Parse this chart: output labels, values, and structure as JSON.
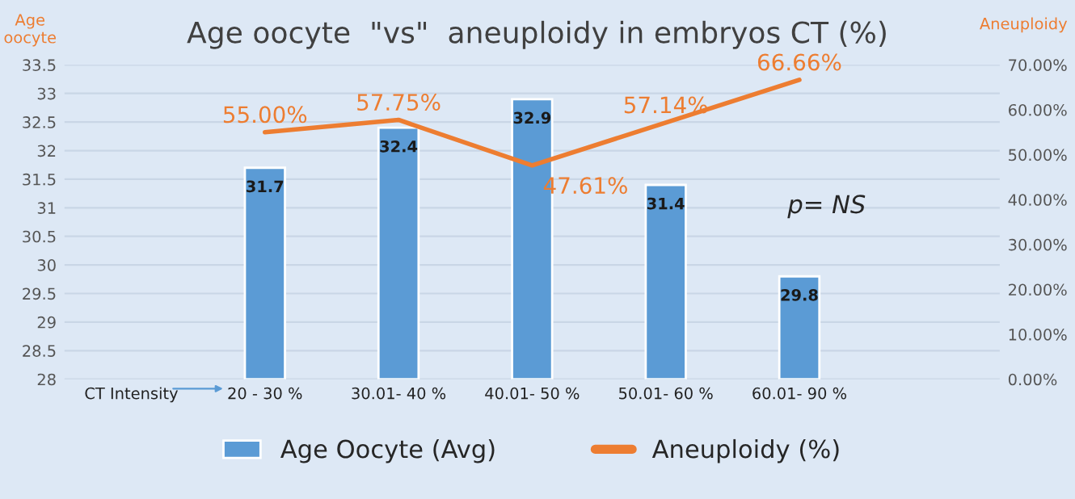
{
  "chart_data": {
    "type": "bar",
    "title": "Age oocyte  \"vs\"  aneuploidy in embryos CT (%)",
    "ylabel": "Age oocyte",
    "y2label": "Aneuploidy",
    "categories": [
      "CT Intensity",
      "20 - 30 %",
      "30.01- 40 %",
      "40.01- 50 %",
      "50.01- 60 %",
      "60.01- 90 %",
      null
    ],
    "series": [
      {
        "name": "Age Oocyte (Avg)",
        "color": "#5b9bd5",
        "values": [
          null,
          31.7,
          32.4,
          32.9,
          31.4,
          29.8,
          null
        ],
        "value_labels": [
          null,
          "31.7",
          "32.4",
          "32.9",
          "31.4",
          "29.8",
          null
        ]
      },
      {
        "name": "Aneuploidy (%)",
        "type": "line",
        "axis": "y2",
        "color": "#ed7d31",
        "values": [
          null,
          55.0,
          57.75,
          47.61,
          57.14,
          66.66,
          null
        ],
        "value_labels": [
          null,
          "55.00%",
          "57.75%",
          "47.61%",
          "57.14%",
          "66.66%",
          null
        ]
      }
    ],
    "ylim": [
      28,
      33.5
    ],
    "yticks": [
      28,
      28.5,
      29,
      29.5,
      30,
      30.5,
      31,
      31.5,
      32,
      32.5,
      33,
      33.5
    ],
    "y2lim": [
      0,
      70
    ],
    "y2ticks": [
      {
        "value": 0,
        "label": "0.00%"
      },
      {
        "value": 10,
        "label": "10.00%"
      },
      {
        "value": 20,
        "label": "20.00%"
      },
      {
        "value": 30,
        "label": "30.00%"
      },
      {
        "value": 40,
        "label": "40.00%"
      },
      {
        "value": 50,
        "label": "50.00%"
      },
      {
        "value": 60,
        "label": "60.00%"
      },
      {
        "value": 70,
        "label": "70.00%"
      }
    ],
    "annotations": [
      "p= NS"
    ],
    "grid": "y",
    "legend": "bottom",
    "marker": "none",
    "line_style": "solid"
  }
}
